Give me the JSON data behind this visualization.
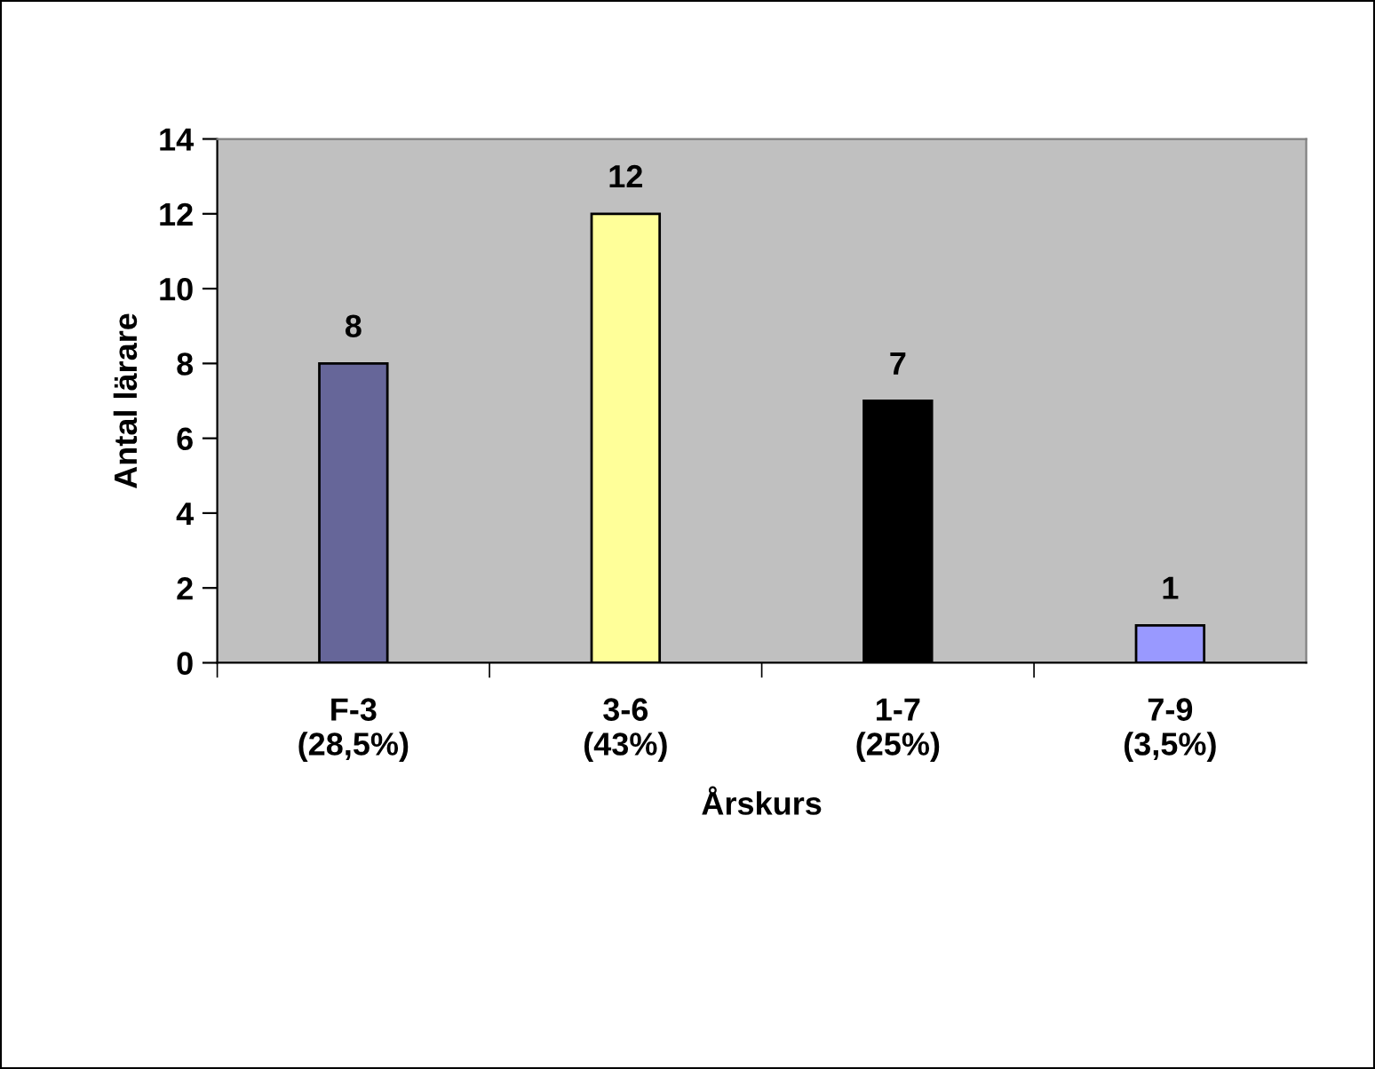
{
  "chart_data": {
    "type": "bar",
    "xlabel": "Årskurs",
    "ylabel": "Antal lärare",
    "categories": [
      "F-3\n(28,5%)",
      "3-6\n(43%)",
      "1-7\n(25%)",
      "7-9\n(3,5%)"
    ],
    "values": [
      8,
      12,
      7,
      1
    ],
    "colors": [
      "#666699",
      "#ffff99",
      "#000000",
      "#9999ff"
    ],
    "ylim": [
      0,
      14
    ],
    "yticks": [
      0,
      2,
      4,
      6,
      8,
      10,
      12,
      14
    ],
    "grid": false,
    "data_labels": true
  }
}
